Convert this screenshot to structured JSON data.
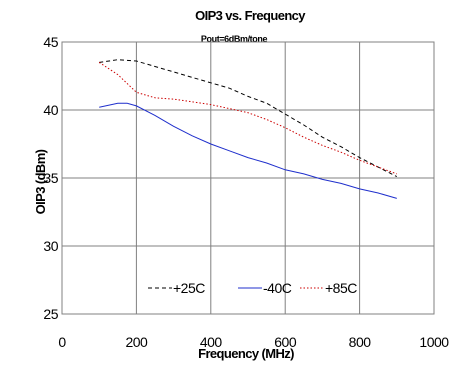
{
  "chart_data": {
    "type": "line",
    "title": "OIP3 vs. Frequency",
    "subtitle": "Pout=6dBm/tone",
    "xlabel": "Frequency (MHz)",
    "ylabel": "OIP3 (dBm)",
    "xlim": [
      0,
      1000
    ],
    "ylim": [
      25,
      45
    ],
    "xticks": [
      "0",
      "200",
      "400",
      "600",
      "800",
      "1000"
    ],
    "yticks": [
      "25",
      "30",
      "35",
      "40",
      "45"
    ],
    "xtick_values": [
      0,
      200,
      400,
      600,
      800,
      1000
    ],
    "ytick_values": [
      25,
      30,
      35,
      40,
      45
    ],
    "grid": true,
    "legend_position": "lower-right",
    "series": [
      {
        "name": "+25C",
        "color": "#000000",
        "style": "dashed",
        "x": [
          100,
          150,
          200,
          250,
          300,
          350,
          400,
          450,
          500,
          550,
          600,
          650,
          700,
          750,
          800,
          850,
          900
        ],
        "y": [
          43.5,
          43.7,
          43.6,
          43.2,
          42.8,
          42.4,
          42.0,
          41.6,
          41.0,
          40.5,
          39.7,
          38.9,
          38.0,
          37.3,
          36.5,
          35.8,
          35.1
        ]
      },
      {
        "name": "-40C",
        "color": "#1f2fcc",
        "style": "solid",
        "x": [
          100,
          150,
          175,
          200,
          250,
          300,
          350,
          400,
          450,
          500,
          550,
          600,
          650,
          700,
          750,
          800,
          850,
          900
        ],
        "y": [
          40.2,
          40.5,
          40.5,
          40.3,
          39.6,
          38.8,
          38.1,
          37.5,
          37.0,
          36.5,
          36.1,
          35.6,
          35.3,
          34.9,
          34.6,
          34.2,
          33.9,
          33.5
        ]
      },
      {
        "name": "+85C",
        "color": "#cc0000",
        "style": "dotted",
        "x": [
          100,
          150,
          200,
          250,
          300,
          350,
          400,
          450,
          500,
          550,
          600,
          650,
          700,
          750,
          800,
          850,
          900
        ],
        "y": [
          43.5,
          42.6,
          41.3,
          40.9,
          40.8,
          40.6,
          40.4,
          40.1,
          39.8,
          39.3,
          38.7,
          38.0,
          37.4,
          36.9,
          36.3,
          35.8,
          35.3
        ]
      }
    ]
  }
}
